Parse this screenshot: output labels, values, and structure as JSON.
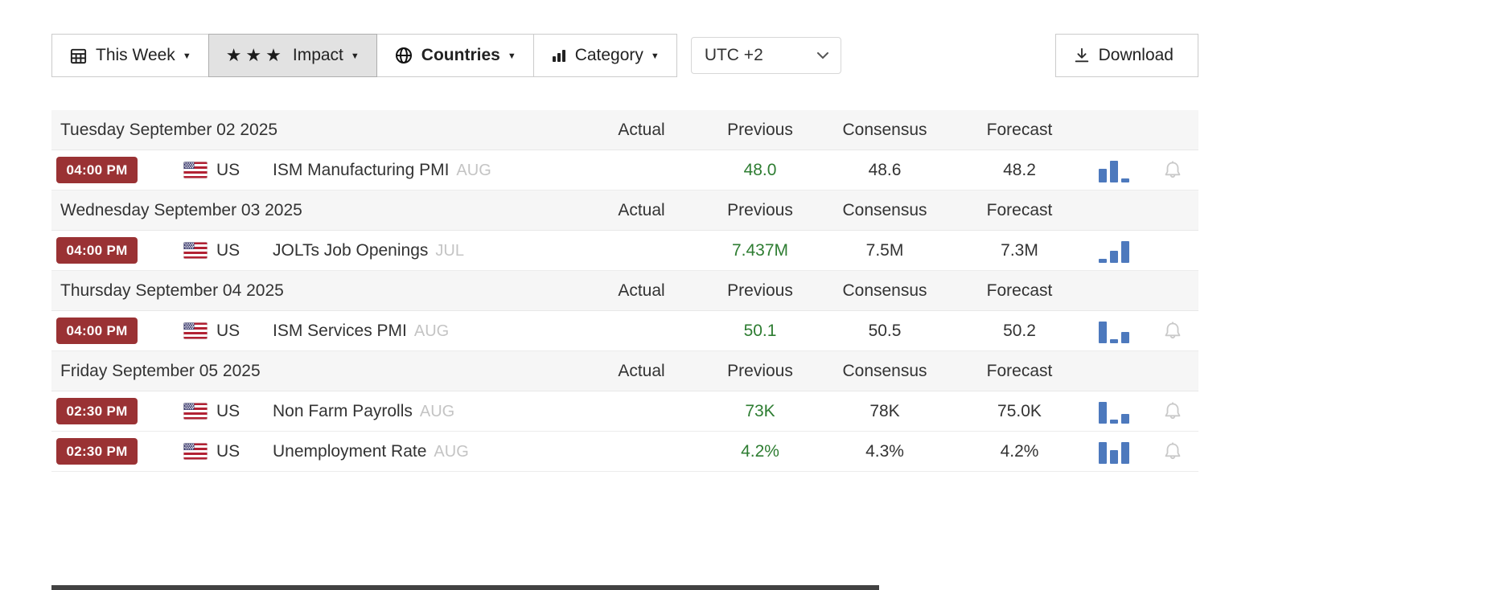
{
  "colors": {
    "badge_bg": "#9a3234",
    "previous_green": "#2e7d32",
    "chart_blue": "#4d79bd",
    "bell_gray": "#c9c9c9",
    "day_row_bg": "#f6f6f6",
    "impact_active_bg": "#e2e2e2"
  },
  "toolbar": {
    "this_week_label": "This Week",
    "impact_label": "Impact",
    "countries_label": "Countries",
    "category_label": "Category",
    "timezone_value": "UTC +2",
    "download_label": "Download",
    "icons": {
      "this_week": "calendar-icon",
      "impact": "three-stars-icon",
      "countries": "globe-icon",
      "category": "bar-chart-icon",
      "download": "download-icon"
    }
  },
  "table": {
    "columns": [
      "Actual",
      "Previous",
      "Consensus",
      "Forecast"
    ],
    "days": [
      {
        "date": "Tuesday September 02 2025",
        "events": [
          {
            "time": "04:00 PM",
            "country": "US",
            "name": "ISM Manufacturing PMI",
            "period": "AUG",
            "actual": "",
            "previous": "48.0",
            "consensus": "48.6",
            "forecast": "48.2",
            "chart_bars": [
              55,
              90,
              15
            ],
            "has_bell": true
          }
        ]
      },
      {
        "date": "Wednesday September 03 2025",
        "events": [
          {
            "time": "04:00 PM",
            "country": "US",
            "name": "JOLTs Job Openings",
            "period": "JUL",
            "actual": "",
            "previous": "7.437M",
            "consensus": "7.5M",
            "forecast": "7.3M",
            "chart_bars": [
              15,
              50,
              88
            ],
            "has_bell": false
          }
        ]
      },
      {
        "date": "Thursday September 04 2025",
        "events": [
          {
            "time": "04:00 PM",
            "country": "US",
            "name": "ISM Services PMI",
            "period": "AUG",
            "actual": "",
            "previous": "50.1",
            "consensus": "50.5",
            "forecast": "50.2",
            "chart_bars": [
              88,
              15,
              45
            ],
            "has_bell": true
          }
        ]
      },
      {
        "date": "Friday September 05 2025",
        "events": [
          {
            "time": "02:30 PM",
            "country": "US",
            "name": "Non Farm Payrolls",
            "period": "AUG",
            "actual": "",
            "previous": "73K",
            "consensus": "78K",
            "forecast": "75.0K",
            "chart_bars": [
              88,
              15,
              40
            ],
            "has_bell": true
          },
          {
            "time": "02:30 PM",
            "country": "US",
            "name": "Unemployment Rate",
            "period": "AUG",
            "actual": "",
            "previous": "4.2%",
            "consensus": "4.3%",
            "forecast": "4.2%",
            "chart_bars": [
              88,
              55,
              88
            ],
            "has_bell": true
          }
        ]
      }
    ]
  }
}
